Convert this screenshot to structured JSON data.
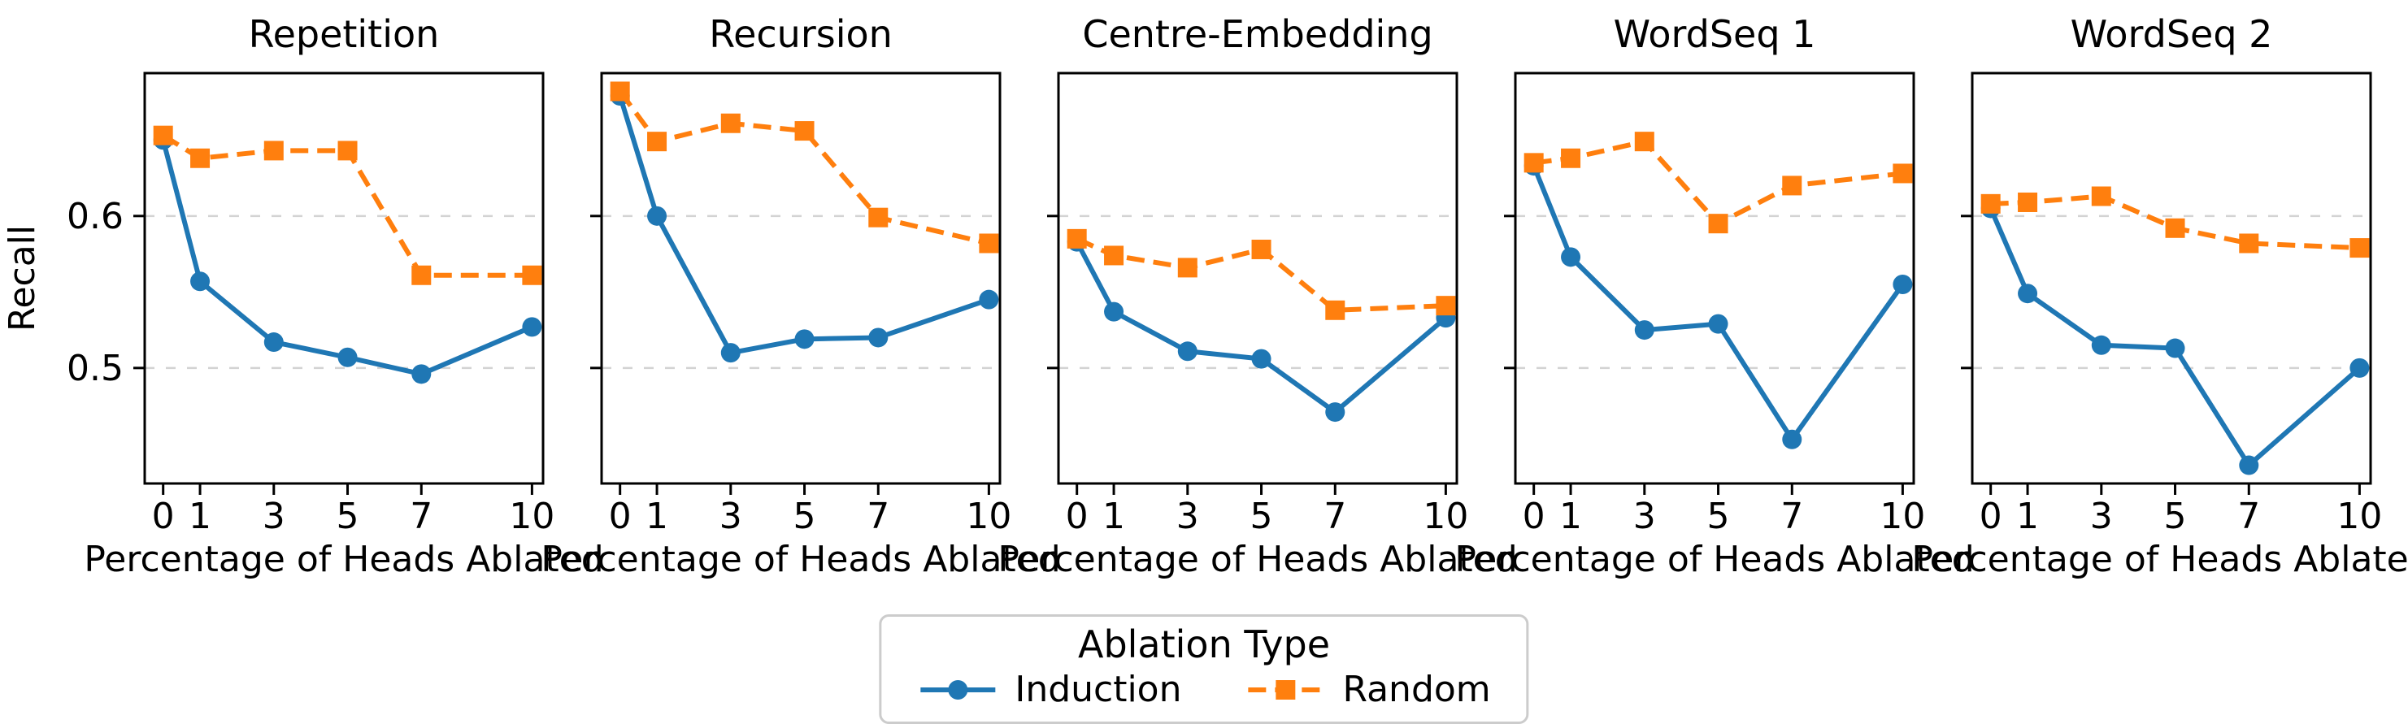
{
  "figure": {
    "background_color": "#ffffff",
    "text_color": "#000000",
    "grid_color": "#d3d3d3",
    "legend": {
      "title": "Ablation Type",
      "entries": [
        {
          "label": "Induction",
          "color": "#1f77b4",
          "marker": "circle",
          "linestyle": "solid"
        },
        {
          "label": "Random",
          "color": "#ff7f0e",
          "marker": "square",
          "linestyle": "dashed"
        }
      ]
    }
  },
  "chart_data": {
    "type": "line",
    "xlabel": "Percentage of Heads Ablated",
    "ylabel": "Recall",
    "x": [
      0,
      1,
      3,
      5,
      7,
      10
    ],
    "xtick_labels": [
      "0",
      "1",
      "3",
      "5",
      "7",
      "10"
    ],
    "yticks": [
      {
        "value": 0.6,
        "label": "0.6"
      },
      {
        "value": 0.5,
        "label": "0.5"
      }
    ],
    "xlim": [
      -0.5,
      10.3
    ],
    "ylim": [
      0.424,
      0.694
    ],
    "grid": "horizontal-dashed",
    "legend_position": "bottom-center",
    "series_styles": [
      {
        "name": "Induction",
        "color": "#1f77b4",
        "marker": "circle",
        "linestyle": "solid"
      },
      {
        "name": "Random",
        "color": "#ff7f0e",
        "marker": "square",
        "linestyle": "dashed"
      }
    ],
    "panels": [
      {
        "title": "Repetition",
        "series": [
          {
            "name": "Induction",
            "values": [
              0.65,
              0.557,
              0.517,
              0.507,
              0.496,
              0.527
            ]
          },
          {
            "name": "Random",
            "values": [
              0.653,
              0.638,
              0.643,
              0.643,
              0.561,
              0.561
            ]
          }
        ]
      },
      {
        "title": "Recursion",
        "series": [
          {
            "name": "Induction",
            "values": [
              0.679,
              0.6,
              0.51,
              0.519,
              0.52,
              0.545
            ]
          },
          {
            "name": "Random",
            "values": [
              0.682,
              0.649,
              0.661,
              0.656,
              0.599,
              0.582
            ]
          }
        ]
      },
      {
        "title": "Centre-Embedding",
        "series": [
          {
            "name": "Induction",
            "values": [
              0.583,
              0.537,
              0.511,
              0.506,
              0.471,
              0.533
            ]
          },
          {
            "name": "Random",
            "values": [
              0.585,
              0.574,
              0.566,
              0.578,
              0.538,
              0.541
            ]
          }
        ]
      },
      {
        "title": "WordSeq 1",
        "series": [
          {
            "name": "Induction",
            "values": [
              0.633,
              0.573,
              0.525,
              0.529,
              0.453,
              0.555
            ]
          },
          {
            "name": "Random",
            "values": [
              0.635,
              0.638,
              0.649,
              0.595,
              0.62,
              0.628
            ]
          }
        ]
      },
      {
        "title": "WordSeq 2",
        "series": [
          {
            "name": "Induction",
            "values": [
              0.605,
              0.549,
              0.515,
              0.513,
              0.436,
              0.5
            ]
          },
          {
            "name": "Random",
            "values": [
              0.608,
              0.609,
              0.613,
              0.592,
              0.582,
              0.579
            ]
          }
        ]
      }
    ]
  }
}
